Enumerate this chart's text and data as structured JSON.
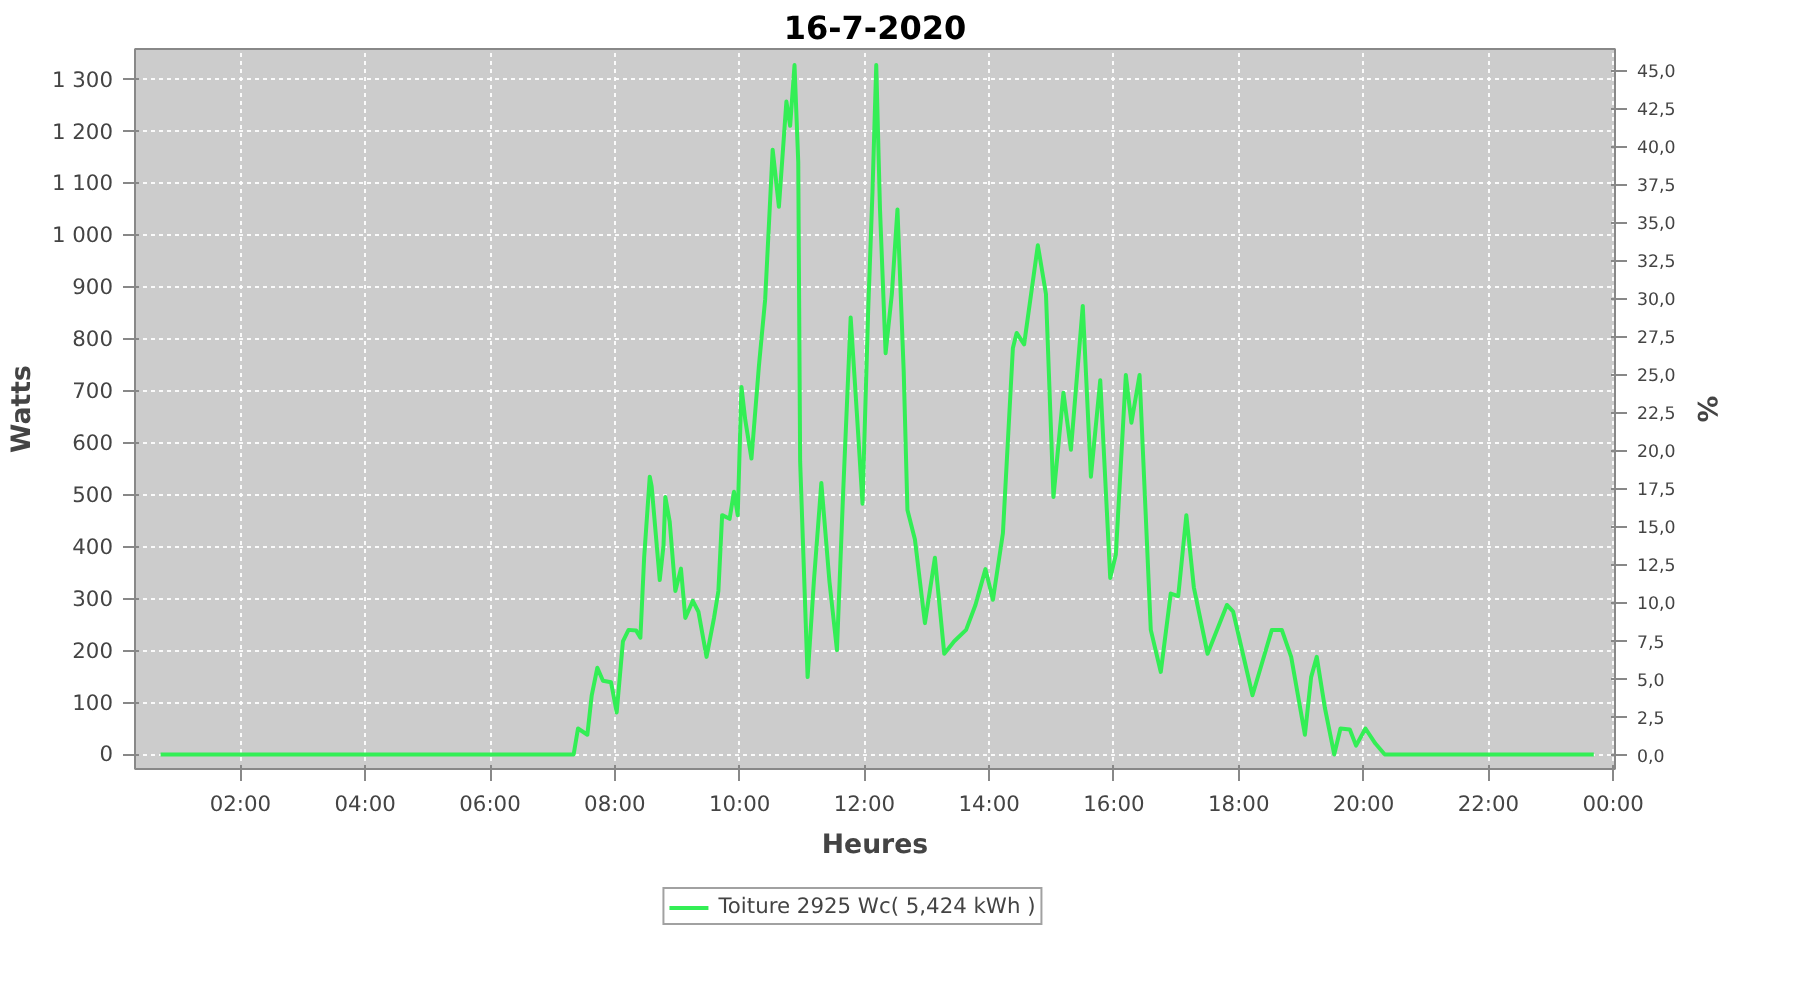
{
  "chart_data": {
    "type": "line",
    "title": "16-7-2020",
    "xlabel": "Heures",
    "ylabel": "Watts",
    "y2label": "%",
    "xlim": [
      0.31,
      24.03
    ],
    "xticks": [
      {
        "value": 2,
        "label": "02:00"
      },
      {
        "value": 4,
        "label": "04:00"
      },
      {
        "value": 6,
        "label": "06:00"
      },
      {
        "value": 8,
        "label": "08:00"
      },
      {
        "value": 10,
        "label": "10:00"
      },
      {
        "value": 12,
        "label": "12:00"
      },
      {
        "value": 14,
        "label": "14:00"
      },
      {
        "value": 16,
        "label": "16:00"
      },
      {
        "value": 18,
        "label": "18:00"
      },
      {
        "value": 20,
        "label": "20:00"
      },
      {
        "value": 22,
        "label": "22:00"
      },
      {
        "value": 24,
        "label": "00:00"
      }
    ],
    "ylim": [
      -28,
      1359
    ],
    "yticks": [
      0,
      100,
      200,
      300,
      400,
      500,
      600,
      700,
      800,
      900,
      {
        "value": 1000,
        "label": "1 000"
      },
      {
        "value": 1100,
        "label": "1 100"
      },
      {
        "value": 1200,
        "label": "1 200"
      },
      {
        "value": 1300,
        "label": "1 300"
      }
    ],
    "y2lim": [
      -0.95,
      46.4
    ],
    "y2ticks": [
      {
        "value": 0,
        "label": "0,0"
      },
      {
        "value": 2.5,
        "label": "2,5"
      },
      {
        "value": 5,
        "label": "5,0"
      },
      {
        "value": 7.5,
        "label": "7,5"
      },
      {
        "value": 10,
        "label": "10,0"
      },
      {
        "value": 12.5,
        "label": "12,5"
      },
      {
        "value": 15,
        "label": "15,0"
      },
      {
        "value": 17.5,
        "label": "17,5"
      },
      {
        "value": 20,
        "label": "20,0"
      },
      {
        "value": 22.5,
        "label": "22,5"
      },
      {
        "value": 25,
        "label": "25,0"
      },
      {
        "value": 27.5,
        "label": "27,5"
      },
      {
        "value": 30,
        "label": "30,0"
      },
      {
        "value": 32.5,
        "label": "32,5"
      },
      {
        "value": 35,
        "label": "35,0"
      },
      {
        "value": 37.5,
        "label": "37,5"
      },
      {
        "value": 40,
        "label": "40,0"
      },
      {
        "value": 42.5,
        "label": "42,5"
      },
      {
        "value": 45,
        "label": "45,0"
      }
    ],
    "grid": true,
    "legend": "bottom",
    "line_style": "solid",
    "series": [
      {
        "name": "Toiture 2925 Wc( 5,424 kWh )",
        "color": "#33ee55",
        "x": [
          0.72,
          7.28,
          7.34,
          7.41,
          7.56,
          7.63,
          7.72,
          7.81,
          7.94,
          8.03,
          8.13,
          8.22,
          8.34,
          8.41,
          8.47,
          8.56,
          8.59,
          8.72,
          8.78,
          8.81,
          8.88,
          8.97,
          9.06,
          9.13,
          9.25,
          9.34,
          9.47,
          9.59,
          9.66,
          9.72,
          9.84,
          9.91,
          9.97,
          10.03,
          10.09,
          10.19,
          10.31,
          10.41,
          10.53,
          10.63,
          10.75,
          10.81,
          10.88,
          10.94,
          10.97,
          11.09,
          11.19,
          11.31,
          11.44,
          11.56,
          11.66,
          11.78,
          11.88,
          11.97,
          12.06,
          12.13,
          12.19,
          12.25,
          12.34,
          12.44,
          12.53,
          12.63,
          12.69,
          12.81,
          12.97,
          13.13,
          13.28,
          13.44,
          13.63,
          13.78,
          13.94,
          14.06,
          14.22,
          14.38,
          14.44,
          14.56,
          14.78,
          14.91,
          15.03,
          15.19,
          15.31,
          15.5,
          15.63,
          15.78,
          15.94,
          16.03,
          16.19,
          16.28,
          16.41,
          16.59,
          16.75,
          16.91,
          17.03,
          17.16,
          17.28,
          17.5,
          17.81,
          17.91,
          18.22,
          18.53,
          18.69,
          18.84,
          19.06,
          19.16,
          19.25,
          19.38,
          19.53,
          19.63,
          19.78,
          19.88,
          20.03,
          20.19,
          20.34,
          23.69
        ],
        "values": [
          0,
          0,
          0,
          50,
          38,
          114,
          167,
          142,
          139,
          81,
          218,
          240,
          239,
          225,
          379,
          535,
          517,
          336,
          402,
          496,
          448,
          315,
          358,
          263,
          296,
          275,
          188,
          263,
          315,
          461,
          454,
          506,
          461,
          708,
          645,
          570,
          749,
          877,
          1165,
          1055,
          1258,
          1211,
          1328,
          1141,
          565,
          149,
          333,
          523,
          333,
          201,
          506,
          842,
          656,
          483,
          853,
          1085,
          1328,
          1050,
          773,
          887,
          1050,
          738,
          471,
          414,
          253,
          379,
          194,
          218,
          240,
          288,
          357,
          298,
          426,
          783,
          812,
          790,
          981,
          887,
          496,
          697,
          587,
          864,
          535,
          721,
          340,
          385,
          731,
          639,
          731,
          240,
          159,
          310,
          305,
          461,
          322,
          194,
          288,
          275,
          114,
          240,
          240,
          188,
          38,
          149,
          188,
          90,
          0,
          50,
          48,
          17,
          50,
          21,
          0,
          0
        ]
      }
    ]
  }
}
